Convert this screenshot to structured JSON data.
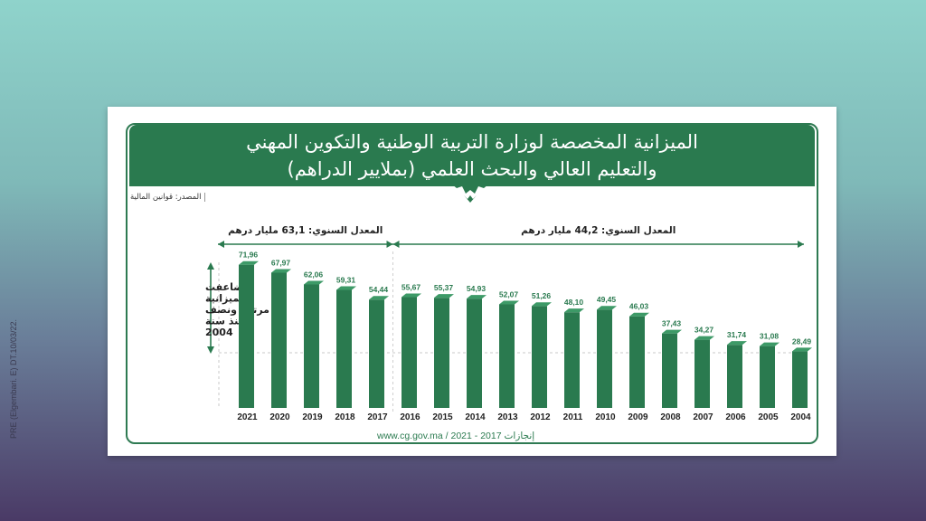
{
  "side_caption": "PRE (Elgembari. E) DT.10/03/22.",
  "title_line1": "الميزانية المخصصة لوزارة التربية الوطنية والتكوين المهني",
  "title_line2": "والتعليم العالي والبحث العلمي (بملايير الدراهم)",
  "source": "المصدر: قوانين المالية",
  "avg_recent": "المعدل السنوي: 63,1 مليار درهم",
  "avg_older": "المعدل السنوي: 44,2 مليار درهم",
  "growth_note": [
    "تضاعفت",
    "الميزانية",
    "مرتين ونصف",
    "منذ سنة",
    "2004"
  ],
  "footer": "www.cg.gov.ma / 2021 - 2017 إنجازات",
  "colors": {
    "bar": "#2a7a4f",
    "bar_top": "#3d9a67",
    "arrow": "#2a7a4f"
  },
  "chart_data": {
    "type": "bar",
    "categories": [
      "2021",
      "2020",
      "2019",
      "2018",
      "2017",
      "2016",
      "2015",
      "2014",
      "2013",
      "2012",
      "2011",
      "2010",
      "2009",
      "2008",
      "2007",
      "2006",
      "2005",
      "2004"
    ],
    "values": [
      71.96,
      67.97,
      62.06,
      59.31,
      54.44,
      55.67,
      55.37,
      54.93,
      52.07,
      51.26,
      48.1,
      49.45,
      46.03,
      37.43,
      34.27,
      31.74,
      31.08,
      28.49
    ],
    "value_labels": [
      "71,96",
      "67,97",
      "62,06",
      "59,31",
      "54,44",
      "55,67",
      "55,37",
      "54,93",
      "52,07",
      "51,26",
      "48,10",
      "49,45",
      "46,03",
      "37,43",
      "34,27",
      "31,74",
      "31,08",
      "28,49"
    ],
    "title": "",
    "xlabel": "",
    "ylabel": "",
    "grid": false
  }
}
